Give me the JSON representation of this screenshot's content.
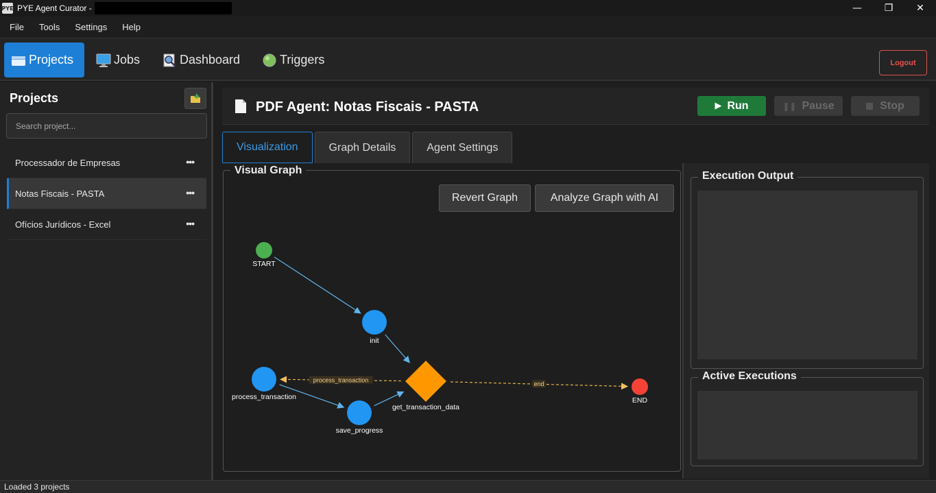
{
  "window": {
    "title": "PYE Agent Curator -",
    "app_icon_text": "PYE",
    "controls": {
      "minimize": "—",
      "maximize": "❐",
      "close": "✕"
    }
  },
  "menu": [
    "File",
    "Tools",
    "Settings",
    "Help"
  ],
  "nav": {
    "tabs": [
      {
        "label": "Projects",
        "icon": "folder-icon",
        "active": true
      },
      {
        "label": "Jobs",
        "icon": "monitor-icon",
        "active": false
      },
      {
        "label": "Dashboard",
        "icon": "dashboard-icon",
        "active": false
      },
      {
        "label": "Triggers",
        "icon": "trigger-icon",
        "active": false
      }
    ],
    "logout_label": "Logout"
  },
  "sidebar": {
    "title": "Projects",
    "search_placeholder": "Search project...",
    "more_label": "•••",
    "projects": [
      {
        "name": "Processador de Empresas",
        "selected": false
      },
      {
        "name": "Notas Fiscais - PASTA",
        "selected": true
      },
      {
        "name": "Ofícios Jurídicos - Excel",
        "selected": false
      }
    ]
  },
  "main": {
    "agent_title": "PDF Agent: Notas Fiscais - PASTA",
    "run_label": "Run",
    "pause_label": "Pause",
    "stop_label": "Stop",
    "tabs": [
      {
        "label": "Visualization",
        "active": true
      },
      {
        "label": "Graph Details",
        "active": false
      },
      {
        "label": "Agent Settings",
        "active": false
      }
    ],
    "graph": {
      "title": "Visual Graph",
      "revert_label": "Revert Graph",
      "analyze_label": "Analyze Graph with AI",
      "nodes": [
        {
          "id": "START",
          "label": "START",
          "color": "#4caf50",
          "shape": "circle"
        },
        {
          "id": "init",
          "label": "init",
          "color": "#2196f3",
          "shape": "circle"
        },
        {
          "id": "get_transaction_data",
          "label": "get_transaction_data",
          "color": "#ff9800",
          "shape": "diamond"
        },
        {
          "id": "process_transaction",
          "label": "process_transaction",
          "color": "#2196f3",
          "shape": "circle"
        },
        {
          "id": "save_progress",
          "label": "save_progress",
          "color": "#2196f3",
          "shape": "circle"
        },
        {
          "id": "END",
          "label": "END",
          "color": "#f44336",
          "shape": "circle"
        }
      ],
      "edges": [
        {
          "from": "START",
          "to": "init",
          "label": "",
          "style": "solid"
        },
        {
          "from": "init",
          "to": "get_transaction_data",
          "label": "",
          "style": "solid"
        },
        {
          "from": "get_transaction_data",
          "to": "process_transaction",
          "label": "process_transaction",
          "style": "dashed"
        },
        {
          "from": "get_transaction_data",
          "to": "END",
          "label": "end",
          "style": "dashed"
        },
        {
          "from": "process_transaction",
          "to": "save_progress",
          "label": "",
          "style": "solid"
        },
        {
          "from": "save_progress",
          "to": "get_transaction_data",
          "label": "",
          "style": "solid"
        }
      ]
    }
  },
  "right_panel": {
    "execution_output_title": "Execution Output",
    "active_executions_title": "Active Executions"
  },
  "status": {
    "text": "Loaded 3 projects"
  }
}
